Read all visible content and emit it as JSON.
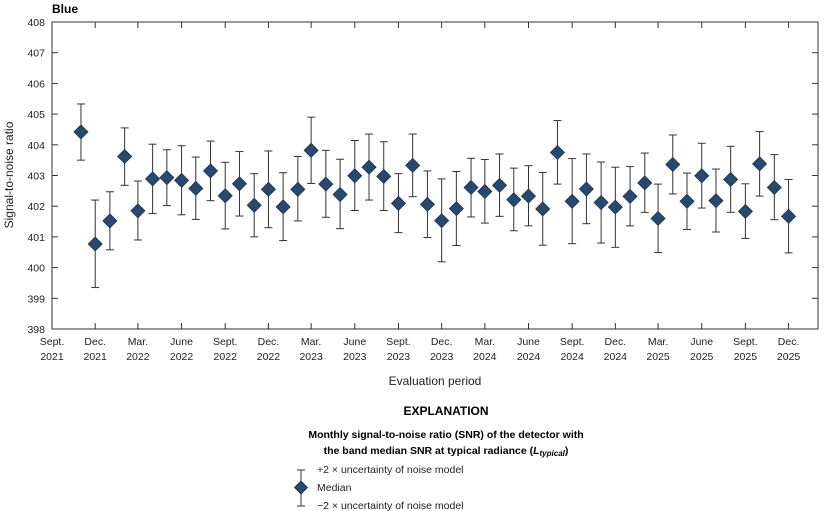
{
  "chart_data": {
    "type": "scatter",
    "panel_label": "Blue",
    "xlabel": "Evaluation period",
    "ylabel": "Signal-to-noise ratio",
    "ylim": [
      398,
      408
    ],
    "yticks": [
      398,
      399,
      400,
      401,
      402,
      403,
      404,
      405,
      406,
      407,
      408
    ],
    "xlim": [
      "2021-09-01",
      "2026-02-01"
    ],
    "xticks": [
      {
        "date": "2021-09-01",
        "label": [
          "Sept.",
          "2021"
        ]
      },
      {
        "date": "2021-12-01",
        "label": [
          "Dec.",
          "2021"
        ]
      },
      {
        "date": "2022-03-01",
        "label": [
          "Mar.",
          "2022"
        ]
      },
      {
        "date": "2022-06-01",
        "label": [
          "June",
          "2022"
        ]
      },
      {
        "date": "2022-09-01",
        "label": [
          "Sept.",
          "2022"
        ]
      },
      {
        "date": "2022-12-01",
        "label": [
          "Dec.",
          "2022"
        ]
      },
      {
        "date": "2023-03-01",
        "label": [
          "Mar.",
          "2023"
        ]
      },
      {
        "date": "2023-06-01",
        "label": [
          "June",
          "2023"
        ]
      },
      {
        "date": "2023-09-01",
        "label": [
          "Sept.",
          "2023"
        ]
      },
      {
        "date": "2023-12-01",
        "label": [
          "Dec.",
          "2023"
        ]
      },
      {
        "date": "2024-03-01",
        "label": [
          "Mar.",
          "2024"
        ]
      },
      {
        "date": "2024-06-01",
        "label": [
          "June",
          "2024"
        ]
      },
      {
        "date": "2024-09-01",
        "label": [
          "Sept.",
          "2024"
        ]
      },
      {
        "date": "2024-12-01",
        "label": [
          "Dec.",
          "2024"
        ]
      },
      {
        "date": "2025-03-01",
        "label": [
          "Mar.",
          "2025"
        ]
      },
      {
        "date": "2025-06-01",
        "label": [
          "June",
          "2025"
        ]
      },
      {
        "date": "2025-09-01",
        "label": [
          "Sept.",
          "2025"
        ]
      },
      {
        "date": "2025-12-01",
        "label": [
          "Dec.",
          "2025"
        ]
      }
    ],
    "grid": false,
    "series": [
      {
        "name": "Median",
        "marker": "diamond",
        "color": "#27496d",
        "points": [
          {
            "x": "2021-11-01",
            "y": 404.42,
            "upper": 405.33,
            "lower": 403.5
          },
          {
            "x": "2021-12-01",
            "y": 400.77,
            "upper": 402.2,
            "lower": 399.35
          },
          {
            "x": "2022-01-01",
            "y": 401.52,
            "upper": 402.47,
            "lower": 400.58
          },
          {
            "x": "2022-02-01",
            "y": 403.62,
            "upper": 404.55,
            "lower": 402.68
          },
          {
            "x": "2022-03-01",
            "y": 401.85,
            "upper": 402.82,
            "lower": 400.9
          },
          {
            "x": "2022-04-01",
            "y": 402.89,
            "upper": 404.02,
            "lower": 401.76
          },
          {
            "x": "2022-05-01",
            "y": 402.93,
            "upper": 403.84,
            "lower": 402.02
          },
          {
            "x": "2022-06-01",
            "y": 402.84,
            "upper": 403.97,
            "lower": 401.72
          },
          {
            "x": "2022-07-01",
            "y": 402.58,
            "upper": 403.6,
            "lower": 401.57
          },
          {
            "x": "2022-08-01",
            "y": 403.15,
            "upper": 404.12,
            "lower": 402.18
          },
          {
            "x": "2022-09-01",
            "y": 402.34,
            "upper": 403.43,
            "lower": 401.26
          },
          {
            "x": "2022-10-01",
            "y": 402.73,
            "upper": 403.78,
            "lower": 401.68
          },
          {
            "x": "2022-11-01",
            "y": 402.03,
            "upper": 403.06,
            "lower": 401.0
          },
          {
            "x": "2022-12-01",
            "y": 402.55,
            "upper": 403.8,
            "lower": 401.3
          },
          {
            "x": "2023-01-01",
            "y": 401.98,
            "upper": 403.09,
            "lower": 400.88
          },
          {
            "x": "2023-02-01",
            "y": 402.55,
            "upper": 403.62,
            "lower": 401.52
          },
          {
            "x": "2023-03-01",
            "y": 403.82,
            "upper": 404.9,
            "lower": 402.74
          },
          {
            "x": "2023-04-01",
            "y": 402.72,
            "upper": 403.82,
            "lower": 401.64
          },
          {
            "x": "2023-05-01",
            "y": 402.38,
            "upper": 403.53,
            "lower": 401.27
          },
          {
            "x": "2023-06-01",
            "y": 402.99,
            "upper": 404.14,
            "lower": 401.86
          },
          {
            "x": "2023-07-01",
            "y": 403.27,
            "upper": 404.35,
            "lower": 402.2
          },
          {
            "x": "2023-08-01",
            "y": 402.97,
            "upper": 404.1,
            "lower": 401.86
          },
          {
            "x": "2023-09-01",
            "y": 402.09,
            "upper": 403.06,
            "lower": 401.14
          },
          {
            "x": "2023-10-01",
            "y": 403.33,
            "upper": 404.35,
            "lower": 402.31
          },
          {
            "x": "2023-11-01",
            "y": 402.06,
            "upper": 403.15,
            "lower": 400.98
          },
          {
            "x": "2023-12-01",
            "y": 401.53,
            "upper": 402.89,
            "lower": 400.19
          },
          {
            "x": "2024-01-01",
            "y": 401.92,
            "upper": 403.13,
            "lower": 400.72
          },
          {
            "x": "2024-02-01",
            "y": 402.61,
            "upper": 403.56,
            "lower": 401.65
          },
          {
            "x": "2024-03-01",
            "y": 402.48,
            "upper": 403.52,
            "lower": 401.45
          },
          {
            "x": "2024-04-01",
            "y": 402.68,
            "upper": 403.7,
            "lower": 401.67
          },
          {
            "x": "2024-05-01",
            "y": 402.21,
            "upper": 403.24,
            "lower": 401.2
          },
          {
            "x": "2024-06-01",
            "y": 402.33,
            "upper": 403.32,
            "lower": 401.36
          },
          {
            "x": "2024-07-01",
            "y": 401.91,
            "upper": 403.1,
            "lower": 400.73
          },
          {
            "x": "2024-08-01",
            "y": 403.75,
            "upper": 404.79,
            "lower": 402.72
          },
          {
            "x": "2024-09-01",
            "y": 402.16,
            "upper": 403.55,
            "lower": 400.78
          },
          {
            "x": "2024-10-01",
            "y": 402.56,
            "upper": 403.7,
            "lower": 401.43
          },
          {
            "x": "2024-11-01",
            "y": 402.12,
            "upper": 403.44,
            "lower": 400.8
          },
          {
            "x": "2024-12-01",
            "y": 401.97,
            "upper": 403.27,
            "lower": 400.66
          },
          {
            "x": "2025-01-01",
            "y": 402.32,
            "upper": 403.29,
            "lower": 401.36
          },
          {
            "x": "2025-02-01",
            "y": 402.76,
            "upper": 403.73,
            "lower": 401.8
          },
          {
            "x": "2025-03-01",
            "y": 401.6,
            "upper": 402.72,
            "lower": 400.49
          },
          {
            "x": "2025-04-01",
            "y": 403.36,
            "upper": 404.32,
            "lower": 402.4
          },
          {
            "x": "2025-05-01",
            "y": 402.16,
            "upper": 403.08,
            "lower": 401.24
          },
          {
            "x": "2025-06-01",
            "y": 402.99,
            "upper": 404.05,
            "lower": 401.94
          },
          {
            "x": "2025-07-01",
            "y": 402.18,
            "upper": 403.21,
            "lower": 401.16
          },
          {
            "x": "2025-08-01",
            "y": 402.87,
            "upper": 403.95,
            "lower": 401.8
          },
          {
            "x": "2025-09-01",
            "y": 401.83,
            "upper": 402.73,
            "lower": 400.95
          },
          {
            "x": "2025-10-01",
            "y": 403.38,
            "upper": 404.43,
            "lower": 402.33
          },
          {
            "x": "2025-11-01",
            "y": 402.61,
            "upper": 403.68,
            "lower": 401.56
          },
          {
            "x": "2025-12-01",
            "y": 401.67,
            "upper": 402.87,
            "lower": 400.48
          }
        ]
      }
    ]
  },
  "explanation": {
    "heading": "EXPLANATION",
    "caption_line1": "Monthly signal-to-noise ratio (SNR) of the detector with",
    "caption_line2_prefix": "the band median SNR at typical radiance (",
    "caption_symbol": "L",
    "caption_subscript": "typical",
    "caption_line2_suffix": ")",
    "upper_label": "+2 × uncertainty of noise model",
    "median_label": "Median",
    "lower_label": "−2 × uncertainty of noise model"
  },
  "colors": {
    "marker_fill": "#27496d",
    "marker_stroke": "#1b3350",
    "axis": "#333333"
  }
}
